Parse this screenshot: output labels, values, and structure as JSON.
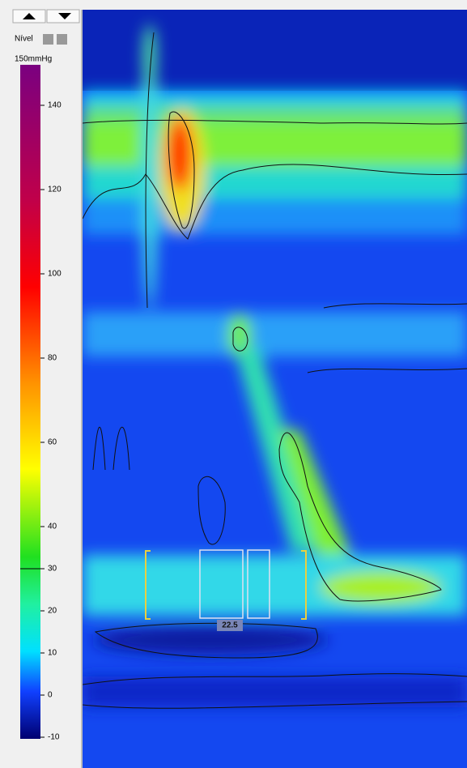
{
  "toolbar": {
    "level_label": "Nível"
  },
  "scale": {
    "max_label": "150mmHg",
    "ticks": [
      140,
      120,
      100,
      80,
      60,
      40,
      30,
      20,
      10,
      0,
      -10
    ]
  },
  "overlay": {
    "value": "22.5"
  }
}
